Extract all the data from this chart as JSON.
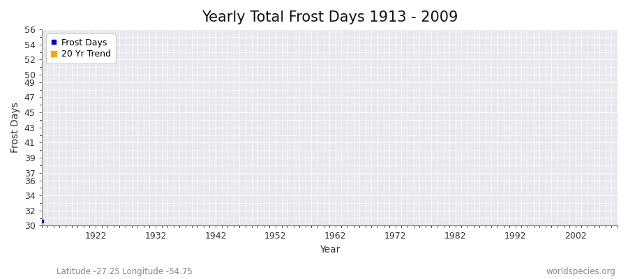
{
  "title": "Yearly Total Frost Days 1913 - 2009",
  "xlabel": "Year",
  "ylabel": "Frost Days",
  "xlim": [
    1913,
    2009
  ],
  "ylim": [
    30,
    56
  ],
  "yticks": [
    30,
    32,
    34,
    36,
    37,
    39,
    41,
    43,
    45,
    47,
    49,
    50,
    52,
    54,
    56
  ],
  "xticks": [
    1922,
    1932,
    1942,
    1952,
    1962,
    1972,
    1982,
    1992,
    2002
  ],
  "data_point_x": 1913,
  "data_point_y": 30.6,
  "frost_color": "#0000cc",
  "trend_color": "#ffa500",
  "fig_bg_color": "#ffffff",
  "plot_bg_color": "#e8e8ee",
  "grid_color": "#ffffff",
  "legend_labels": [
    "Frost Days",
    "20 Yr Trend"
  ],
  "subtitle_left": "Latitude -27.25 Longitude -54.75",
  "subtitle_right": "worldspecies.org",
  "title_fontsize": 15,
  "axis_label_fontsize": 10,
  "tick_fontsize": 9,
  "legend_fontsize": 9
}
